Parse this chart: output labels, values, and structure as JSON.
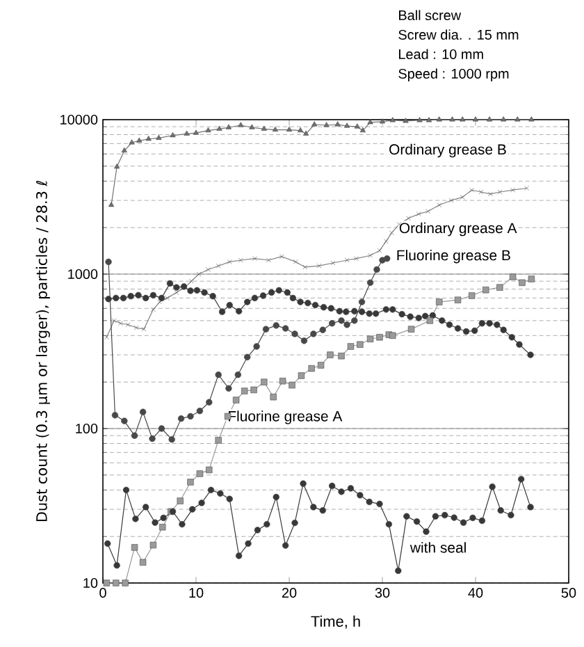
{
  "chart_data": {
    "type": "line",
    "xlabel": "Time, h",
    "ylabel": "Dust count (0.3 μm or larger), particles / 28.3 ℓ",
    "xlim": [
      0,
      50
    ],
    "ylim": [
      10,
      10000
    ],
    "xticks": [
      0,
      10,
      20,
      30,
      40,
      50
    ],
    "yticks": [
      10,
      100,
      1000,
      10000
    ],
    "log": "y",
    "grid": "y",
    "line_style": "solid",
    "annotations": [
      "Ball screw",
      "Screw dia. . 15 mm",
      "Lead : 10 mm",
      "Speed : 1000 rpm"
    ],
    "series": [
      {
        "name": "Ordinary grease B",
        "color": "#707070",
        "marker": "triangle",
        "x": [
          0.9,
          1.5,
          2.3,
          3.1,
          3.9,
          4.9,
          6,
          7.5,
          9,
          10,
          11.3,
          12.5,
          13.5,
          14.8,
          16,
          17.3,
          18.5,
          20,
          21.2,
          21.8,
          22.7,
          24,
          25.2,
          26.2,
          27.3,
          27.9,
          28.7,
          30,
          31.1,
          32.5,
          34,
          35,
          36.1,
          37.5,
          38.6,
          40,
          41.5,
          43,
          44.5,
          46
        ],
        "values": [
          2800,
          4950,
          6300,
          7100,
          7300,
          7500,
          7600,
          7900,
          8100,
          8200,
          8500,
          8700,
          8900,
          9200,
          8900,
          8700,
          8600,
          8600,
          8500,
          8100,
          9300,
          9200,
          9300,
          9100,
          9000,
          8500,
          9600,
          9700,
          9900,
          9800,
          9900,
          9900,
          10000,
          10000,
          10000,
          10000,
          10000,
          10000,
          10000,
          10000
        ]
      },
      {
        "name": "Ordinary grease A",
        "color": "#808080",
        "marker": "cross",
        "x": [
          0.4,
          1.2,
          1.9,
          2.7,
          3.6,
          4.4,
          5.4,
          6.1,
          6.9,
          7.9,
          8.8,
          9.5,
          10.3,
          11.3,
          12.4,
          13.6,
          14.8,
          16.3,
          17.8,
          19.2,
          20.7,
          21.7,
          23.2,
          24.7,
          26.2,
          27.2,
          28.7,
          29.7,
          30.4,
          31,
          31.8,
          32.8,
          33.9,
          34.9,
          36.1,
          37.4,
          38.6,
          39.6,
          40.6,
          41.6,
          42.6,
          44,
          45.5
        ],
        "values": [
          390,
          500,
          480,
          470,
          450,
          440,
          590,
          660,
          700,
          760,
          820,
          900,
          1000,
          1070,
          1130,
          1200,
          1230,
          1260,
          1230,
          1300,
          1200,
          1110,
          1130,
          1180,
          1230,
          1260,
          1320,
          1420,
          1630,
          1850,
          2100,
          2300,
          2450,
          2550,
          2800,
          3000,
          3150,
          3500,
          3400,
          3300,
          3400,
          3500,
          3600
        ]
      },
      {
        "name": "Fluorine grease B",
        "color": "#484848",
        "marker": "circle",
        "x": [
          0.6,
          1.3,
          2.3,
          3.4,
          4.3,
          5.3,
          6.3,
          7.4,
          8.4,
          9.4,
          10.4,
          11.4,
          12.4,
          13.5,
          14.5,
          15.5,
          16.5,
          17.5,
          18.6,
          19.6,
          20.6,
          21.6,
          22.6,
          23.6,
          24.6,
          25.6,
          26.2,
          27,
          27.8,
          28.7,
          29.4,
          30,
          30.5
        ],
        "values": [
          1200,
          122,
          112,
          90,
          128,
          86,
          100,
          85,
          116,
          120,
          130,
          148,
          223,
          182,
          223,
          290,
          340,
          440,
          465,
          445,
          410,
          370,
          410,
          435,
          480,
          500,
          470,
          500,
          660,
          880,
          1070,
          1230,
          1260
        ]
      },
      {
        "name": null,
        "color": "#383838",
        "marker": "circle",
        "x": [
          0.6,
          1.4,
          2.2,
          3,
          3.8,
          4.6,
          5.4,
          6.3,
          7.2,
          7.9,
          8.7,
          9.4,
          10.1,
          10.9,
          11.8,
          12.8,
          13.6,
          14.6,
          15.5,
          16.3,
          17.2,
          18.1,
          18.9,
          19.8,
          20.4,
          21.2,
          22,
          22.8,
          23.7,
          24.5,
          25.4,
          26.1,
          27,
          27.8,
          28.6,
          29.3,
          30.4,
          31.1,
          32.1,
          33,
          33.9,
          34.6,
          35.4,
          36.4,
          37.2,
          38.1,
          39,
          39.9,
          40.7,
          41.5,
          42.3,
          43,
          43.9,
          44.7,
          45.9
        ],
        "values": [
          690,
          700,
          700,
          720,
          730,
          700,
          730,
          700,
          870,
          820,
          830,
          780,
          785,
          760,
          720,
          570,
          630,
          575,
          660,
          700,
          725,
          760,
          785,
          760,
          700,
          660,
          650,
          630,
          610,
          600,
          575,
          570,
          575,
          570,
          555,
          555,
          590,
          590,
          550,
          530,
          520,
          535,
          540,
          500,
          470,
          445,
          425,
          430,
          480,
          480,
          470,
          435,
          390,
          350,
          300
        ]
      },
      {
        "name": "Fluorine grease A",
        "color": "#9a9a9a",
        "marker": "square",
        "x": [
          0.4,
          1.4,
          2.4,
          3.4,
          4.3,
          5.4,
          6.4,
          7.3,
          8.3,
          9.4,
          10.4,
          11.4,
          12.4,
          13.4,
          14.3,
          15.2,
          16.2,
          17.3,
          18.3,
          19.3,
          20.3,
          21.3,
          22.4,
          23.4,
          24.4,
          25.6,
          26.6,
          27.6,
          28.7,
          29.7,
          30.7,
          31.1,
          33.1,
          35.1,
          36.1,
          38.1,
          39.6,
          41.1,
          42.6,
          44,
          45,
          46
        ],
        "values": [
          10,
          10,
          10,
          17,
          13.6,
          17.6,
          23,
          29,
          34,
          45,
          51,
          54,
          84,
          120,
          153,
          175,
          178,
          200,
          160,
          203,
          191,
          220,
          245,
          257,
          300,
          295,
          340,
          350,
          380,
          390,
          405,
          400,
          440,
          500,
          660,
          680,
          725,
          790,
          820,
          960,
          880,
          930
        ]
      },
      {
        "name": "with seal",
        "color": "#383838",
        "marker": "circle",
        "x": [
          0.5,
          1.5,
          2.5,
          3.5,
          4.6,
          5.6,
          6.5,
          7.5,
          8.5,
          9.6,
          10.6,
          11.6,
          12.6,
          13.6,
          14.6,
          15.6,
          16.6,
          17.6,
          18.6,
          19.6,
          20.6,
          21.5,
          22.6,
          23.6,
          24.6,
          25.6,
          26.6,
          27.6,
          28.6,
          29.7,
          30.7,
          31.7,
          32.6,
          33.7,
          34.7,
          35.7,
          36.7,
          37.7,
          38.7,
          39.7,
          40.7,
          41.8,
          42.7,
          43.8,
          44.9,
          45.9
        ],
        "values": [
          18,
          13,
          40,
          26,
          31,
          24.6,
          26.4,
          29,
          24,
          30,
          33,
          40,
          38,
          35,
          15,
          18,
          22,
          24,
          36,
          17.5,
          24.5,
          44,
          31,
          29.5,
          42.5,
          39,
          41,
          37,
          33.5,
          32.5,
          24,
          12,
          27,
          25,
          21.5,
          27,
          27.5,
          26.5,
          24.6,
          26.4,
          25.3,
          42,
          29.5,
          27.5,
          47,
          31
        ]
      }
    ]
  }
}
